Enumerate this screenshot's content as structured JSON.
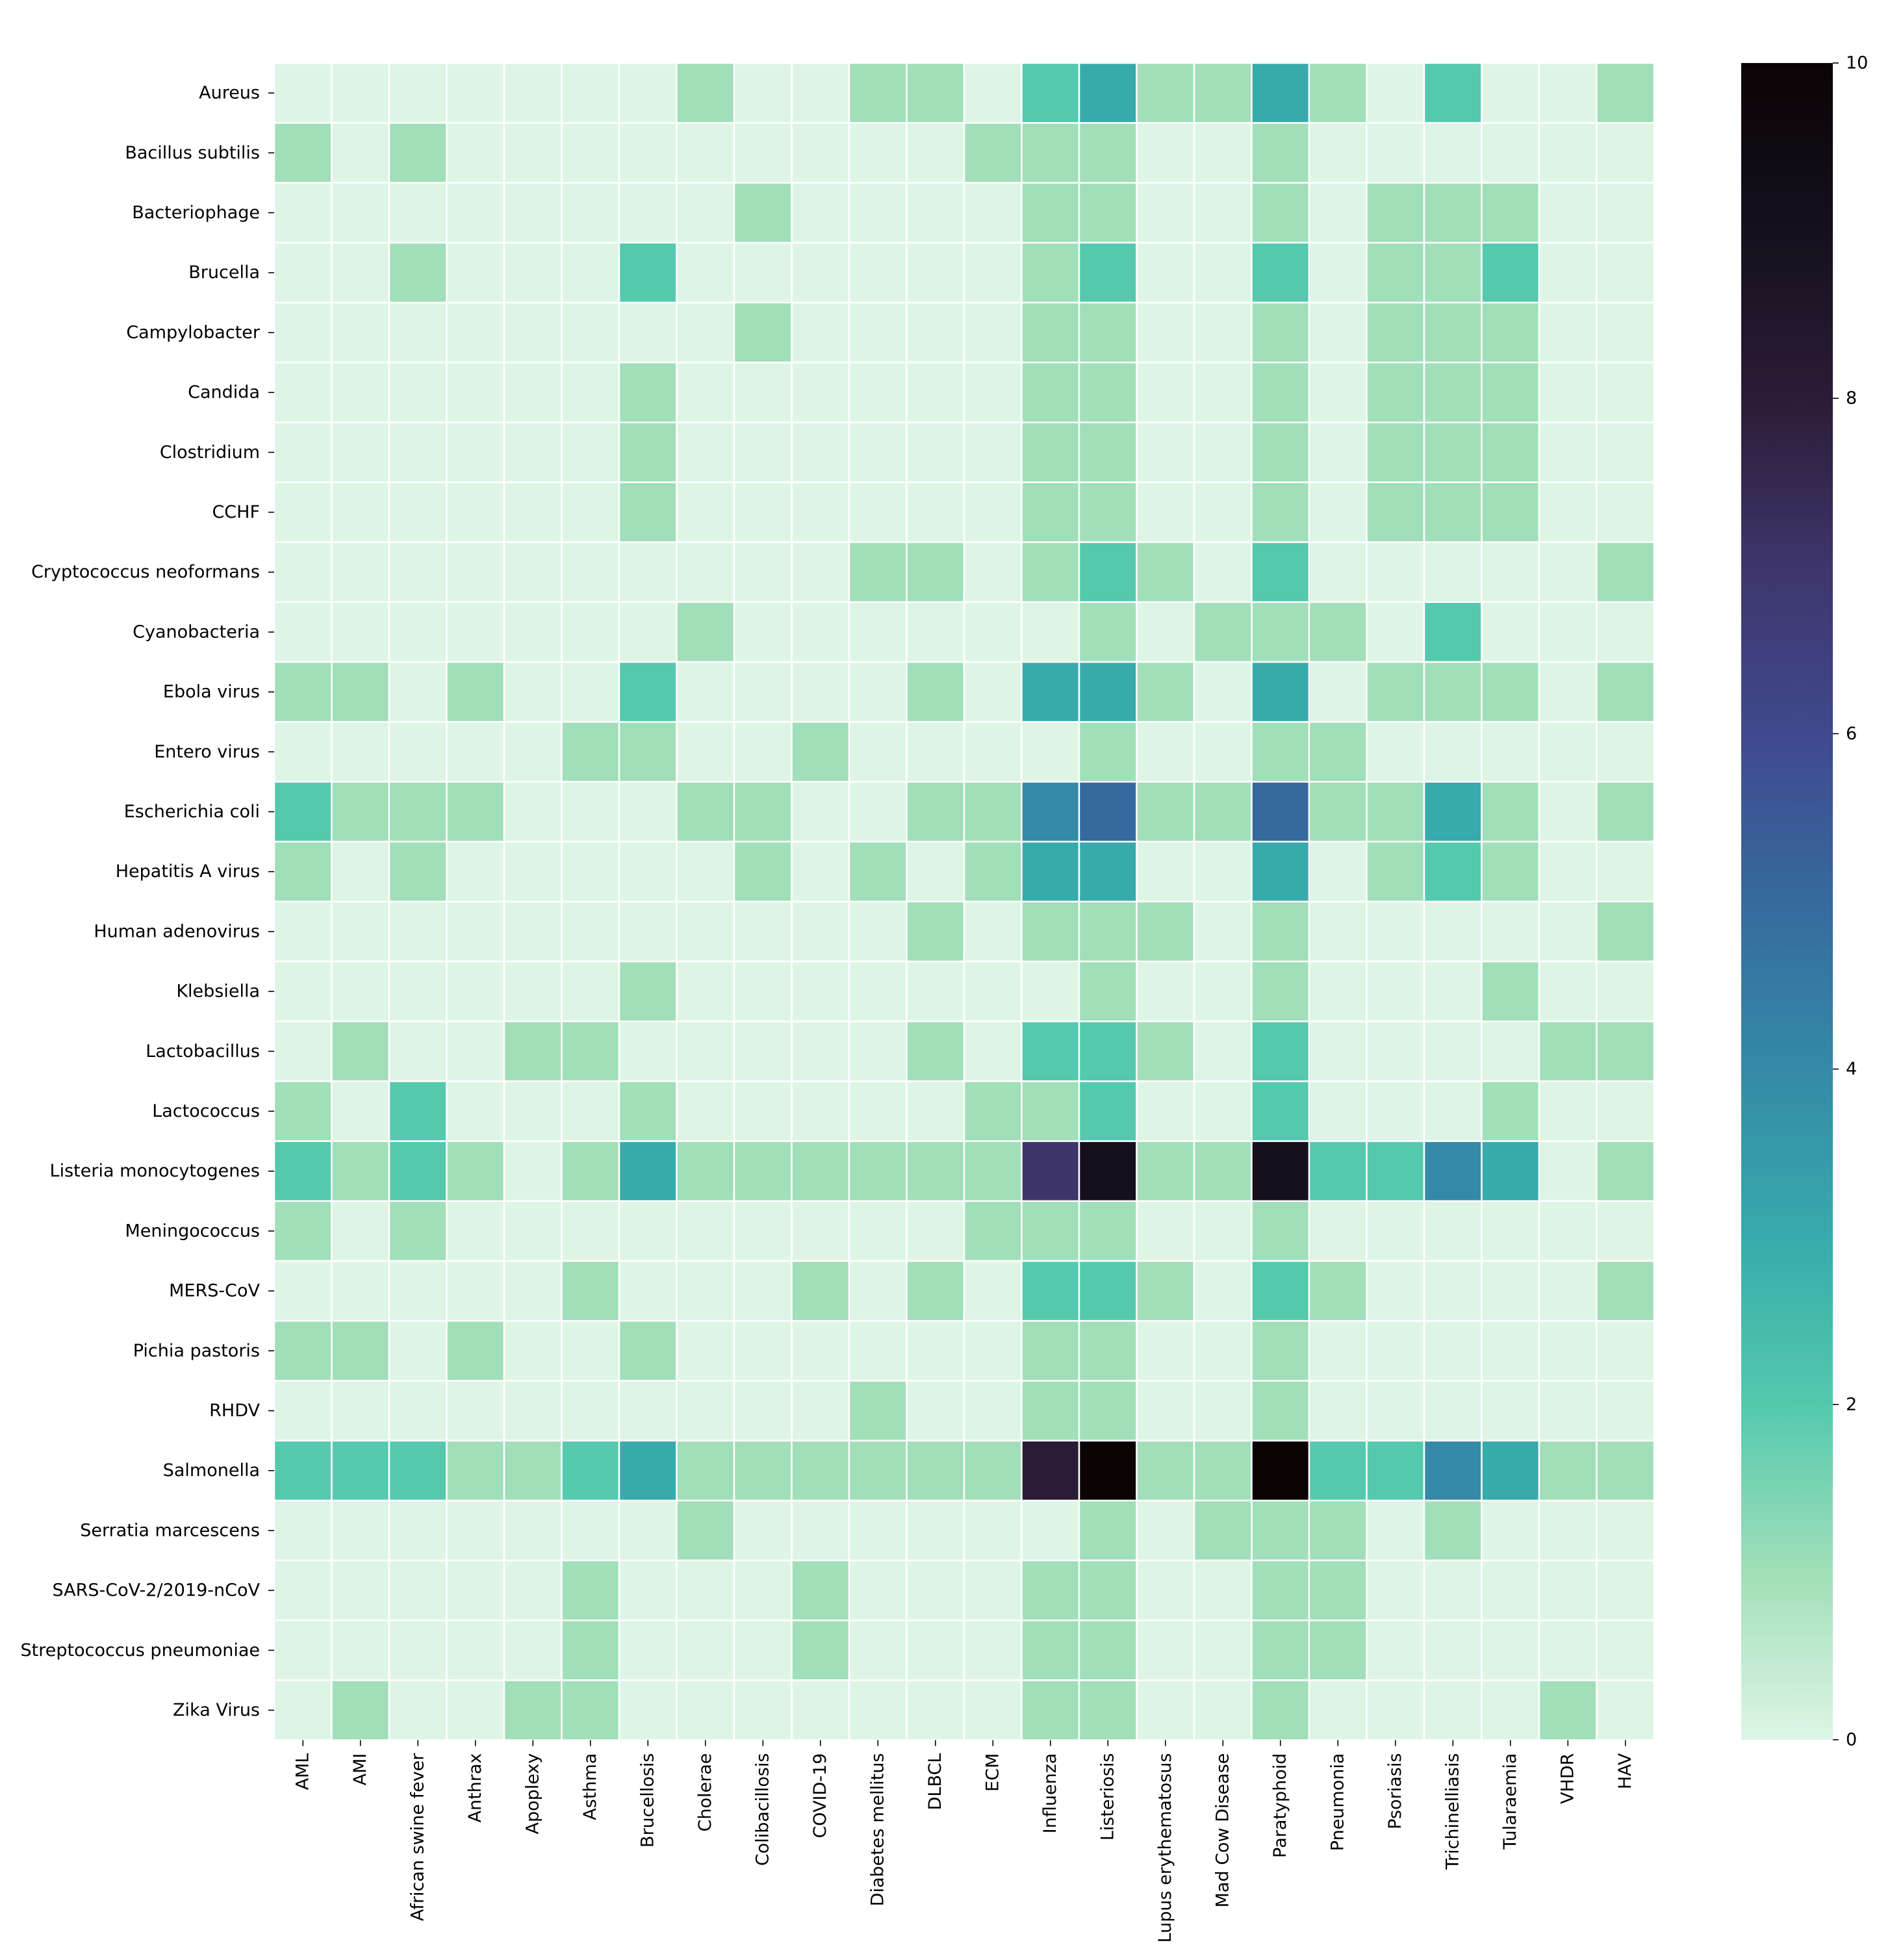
{
  "chart_data": {
    "type": "heatmap",
    "title": "",
    "xlabel": "",
    "ylabel": "",
    "x_categories": [
      "AML",
      "AMI",
      "African swine fever",
      "Anthrax",
      "Apoplexy",
      "Asthma",
      "Brucellosis",
      "Cholerae",
      "Colibacillosis",
      "COVID-19",
      "Diabetes mellitus",
      "DLBCL",
      "ECM",
      "Influenza",
      "Listeriosis",
      "Lupus erythematosus",
      "Mad Cow Disease",
      "Paratyphoid",
      "Pneumonia",
      "Psoriasis",
      "Trichinelliasis",
      "Tularaemia",
      "VHDR",
      "HAV"
    ],
    "y_categories": [
      "Aureus",
      "Bacillus subtilis",
      "Bacteriophage",
      "Brucella",
      "Campylobacter",
      "Candida",
      "Clostridium",
      "CCHF",
      "Cryptococcus neoformans",
      "Cyanobacteria",
      "Ebola virus",
      "Entero virus",
      "Escherichia coli",
      "Hepatitis A virus",
      "Human adenovirus",
      "Klebsiella",
      "Lactobacillus",
      "Lactococcus",
      "Listeria monocytogenes",
      "Meningococcus",
      "MERS-CoV",
      "Pichia pastoris",
      "RHDV",
      "Salmonella",
      "Serratia marcescens",
      "SARS-CoV-2/2019-nCoV",
      "Streptococcus pneumoniae",
      "Zika Virus"
    ],
    "values": [
      [
        0,
        0,
        0,
        0,
        0,
        0,
        0,
        1,
        0,
        0,
        1,
        1,
        0,
        2,
        3,
        1,
        1,
        3,
        1,
        0,
        2,
        0,
        0,
        1
      ],
      [
        1,
        0,
        1,
        0,
        0,
        0,
        0,
        0,
        0,
        0,
        0,
        0,
        1,
        1,
        1,
        0,
        0,
        1,
        0,
        0,
        0,
        0,
        0,
        0
      ],
      [
        0,
        0,
        0,
        0,
        0,
        0,
        0,
        0,
        1,
        0,
        0,
        0,
        0,
        1,
        1,
        0,
        0,
        1,
        0,
        1,
        1,
        1,
        0,
        0
      ],
      [
        0,
        0,
        1,
        0,
        0,
        0,
        2,
        0,
        0,
        0,
        0,
        0,
        0,
        1,
        2,
        0,
        0,
        2,
        0,
        1,
        1,
        2,
        0,
        0
      ],
      [
        0,
        0,
        0,
        0,
        0,
        0,
        0,
        0,
        1,
        0,
        0,
        0,
        0,
        1,
        1,
        0,
        0,
        1,
        0,
        1,
        1,
        1,
        0,
        0
      ],
      [
        0,
        0,
        0,
        0,
        0,
        0,
        1,
        0,
        0,
        0,
        0,
        0,
        0,
        1,
        1,
        0,
        0,
        1,
        0,
        1,
        1,
        1,
        0,
        0
      ],
      [
        0,
        0,
        0,
        0,
        0,
        0,
        1,
        0,
        0,
        0,
        0,
        0,
        0,
        1,
        1,
        0,
        0,
        1,
        0,
        1,
        1,
        1,
        0,
        0
      ],
      [
        0,
        0,
        0,
        0,
        0,
        0,
        1,
        0,
        0,
        0,
        0,
        0,
        0,
        1,
        1,
        0,
        0,
        1,
        0,
        1,
        1,
        1,
        0,
        0
      ],
      [
        0,
        0,
        0,
        0,
        0,
        0,
        0,
        0,
        0,
        0,
        1,
        1,
        0,
        1,
        2,
        1,
        0,
        2,
        0,
        0,
        0,
        0,
        0,
        1
      ],
      [
        0,
        0,
        0,
        0,
        0,
        0,
        0,
        1,
        0,
        0,
        0,
        0,
        0,
        0,
        1,
        0,
        1,
        1,
        1,
        0,
        2,
        0,
        0,
        0
      ],
      [
        1,
        1,
        0,
        1,
        0,
        0,
        2,
        0,
        0,
        0,
        0,
        1,
        0,
        3,
        3,
        1,
        0,
        3,
        0,
        1,
        1,
        1,
        0,
        1
      ],
      [
        0,
        0,
        0,
        0,
        0,
        1,
        1,
        0,
        0,
        1,
        0,
        0,
        0,
        0,
        1,
        0,
        0,
        1,
        1,
        0,
        0,
        0,
        0,
        0
      ],
      [
        2,
        1,
        1,
        1,
        0,
        0,
        0,
        1,
        1,
        0,
        0,
        1,
        1,
        4,
        5,
        1,
        1,
        5,
        1,
        1,
        3,
        1,
        0,
        1
      ],
      [
        1,
        0,
        1,
        0,
        0,
        0,
        0,
        0,
        1,
        0,
        1,
        0,
        1,
        3,
        3,
        0,
        0,
        3,
        0,
        1,
        2,
        1,
        0,
        0
      ],
      [
        0,
        0,
        0,
        0,
        0,
        0,
        0,
        0,
        0,
        0,
        0,
        1,
        0,
        1,
        1,
        1,
        0,
        1,
        0,
        0,
        0,
        0,
        0,
        1
      ],
      [
        0,
        0,
        0,
        0,
        0,
        0,
        1,
        0,
        0,
        0,
        0,
        0,
        0,
        0,
        1,
        0,
        0,
        1,
        0,
        0,
        0,
        1,
        0,
        0
      ],
      [
        0,
        1,
        0,
        0,
        1,
        1,
        0,
        0,
        0,
        0,
        0,
        1,
        0,
        2,
        2,
        1,
        0,
        2,
        0,
        0,
        0,
        0,
        1,
        1
      ],
      [
        1,
        0,
        2,
        0,
        0,
        0,
        1,
        0,
        0,
        0,
        0,
        0,
        1,
        1,
        2,
        0,
        0,
        2,
        0,
        0,
        0,
        1,
        0,
        0
      ],
      [
        2,
        1,
        2,
        1,
        0,
        1,
        3,
        1,
        1,
        1,
        1,
        1,
        1,
        7,
        9,
        1,
        1,
        9,
        2,
        2,
        4,
        3,
        0,
        1
      ],
      [
        1,
        0,
        1,
        0,
        0,
        0,
        0,
        0,
        0,
        0,
        0,
        0,
        1,
        1,
        1,
        0,
        0,
        1,
        0,
        0,
        0,
        0,
        0,
        0
      ],
      [
        0,
        0,
        0,
        0,
        0,
        1,
        0,
        0,
        0,
        1,
        0,
        1,
        0,
        2,
        2,
        1,
        0,
        2,
        1,
        0,
        0,
        0,
        0,
        1
      ],
      [
        1,
        1,
        0,
        1,
        0,
        0,
        1,
        0,
        0,
        0,
        0,
        0,
        0,
        1,
        1,
        0,
        0,
        1,
        0,
        0,
        0,
        0,
        0,
        0
      ],
      [
        0,
        0,
        0,
        0,
        0,
        0,
        0,
        0,
        0,
        0,
        1,
        0,
        0,
        1,
        1,
        0,
        0,
        1,
        0,
        0,
        0,
        0,
        0,
        0
      ],
      [
        2,
        2,
        2,
        1,
        1,
        2,
        3,
        1,
        1,
        1,
        1,
        1,
        1,
        8,
        10,
        1,
        1,
        10,
        2,
        2,
        4,
        3,
        1,
        1
      ],
      [
        0,
        0,
        0,
        0,
        0,
        0,
        0,
        1,
        0,
        0,
        0,
        0,
        0,
        0,
        1,
        0,
        1,
        1,
        1,
        0,
        1,
        0,
        0,
        0
      ],
      [
        0,
        0,
        0,
        0,
        0,
        1,
        0,
        0,
        0,
        1,
        0,
        0,
        0,
        1,
        1,
        0,
        0,
        1,
        1,
        0,
        0,
        0,
        0,
        0
      ],
      [
        0,
        0,
        0,
        0,
        0,
        1,
        0,
        0,
        0,
        1,
        0,
        0,
        0,
        1,
        1,
        0,
        0,
        1,
        1,
        0,
        0,
        0,
        0,
        0
      ],
      [
        0,
        1,
        0,
        0,
        1,
        1,
        0,
        0,
        0,
        0,
        0,
        0,
        0,
        1,
        1,
        0,
        0,
        1,
        0,
        0,
        0,
        0,
        1,
        0
      ]
    ],
    "vmin": 0,
    "vmax": 10,
    "colormap": "mako_r",
    "colorbar": {
      "ticks": [
        0,
        2,
        4,
        6,
        8,
        10
      ],
      "tick_labels": [
        "0",
        "2",
        "4",
        "6",
        "8",
        "10"
      ]
    },
    "cell_border_color": "#ffffff",
    "grid": false,
    "legend": "none"
  }
}
